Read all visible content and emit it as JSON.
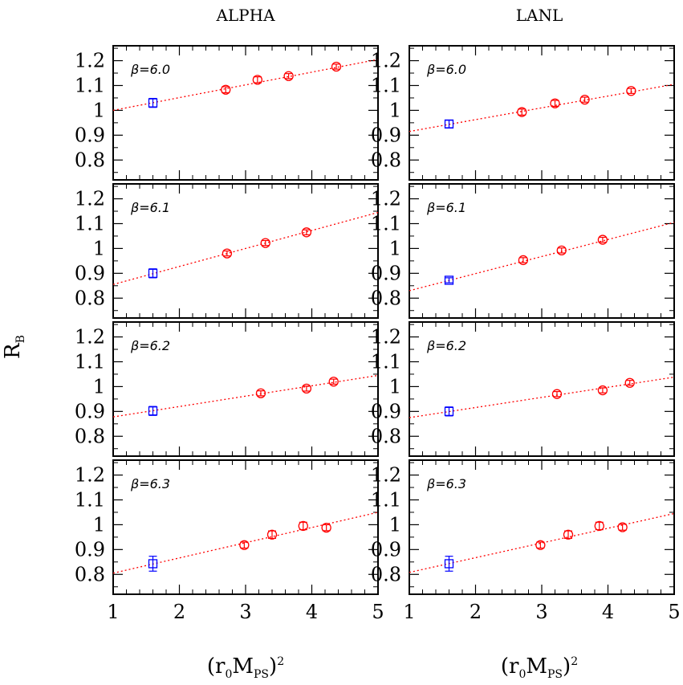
{
  "figure": {
    "ylabel": "R",
    "ylabel_sub": "B",
    "xlabel_main": "(r",
    "xlabel_sub1": "0",
    "xlabel_mid": "M",
    "xlabel_sub2": "PS",
    "xlabel_end": ")",
    "xlabel_sup": "2",
    "x_ticks": [
      "1",
      "2",
      "3",
      "4",
      "5"
    ],
    "y_ticks": [
      "1.2",
      "1.1",
      "1",
      "0.9",
      "0.8"
    ],
    "colors": {
      "fit": "#ff0000",
      "simulation": "#ff0000",
      "extrapolated": "#0000ff"
    }
  },
  "chart_data": [
    {
      "type": "scatter",
      "column": "ALPHA",
      "panel": "β=6.0",
      "xlim": [
        1,
        5
      ],
      "ylim": [
        0.72,
        1.26
      ],
      "fit": {
        "x": [
          1,
          5
        ],
        "y": [
          1.0,
          1.205
        ]
      },
      "series": [
        {
          "name": "",
          "marker": "circle",
          "color": "#ff0000",
          "x": [
            2.7,
            3.18,
            3.65,
            4.37
          ],
          "y": [
            1.083,
            1.123,
            1.138,
            1.176
          ],
          "err": [
            0.012,
            0.012,
            0.01,
            0.01
          ]
        },
        {
          "name": "",
          "marker": "square",
          "color": "#0000ff",
          "x": [
            1.6
          ],
          "y": [
            1.03
          ],
          "err": [
            0.018
          ]
        }
      ]
    },
    {
      "type": "scatter",
      "column": "LANL",
      "panel": "β=6.0",
      "xlim": [
        1,
        5
      ],
      "ylim": [
        0.72,
        1.26
      ],
      "fit": {
        "x": [
          1,
          5
        ],
        "y": [
          0.915,
          1.105
        ]
      },
      "series": [
        {
          "name": "",
          "marker": "circle",
          "color": "#ff0000",
          "x": [
            2.7,
            3.2,
            3.65,
            4.35
          ],
          "y": [
            0.993,
            1.028,
            1.043,
            1.078
          ],
          "err": [
            0.012,
            0.012,
            0.01,
            0.01
          ]
        },
        {
          "name": "",
          "marker": "square",
          "color": "#0000ff",
          "x": [
            1.6
          ],
          "y": [
            0.945
          ],
          "err": [
            0.015
          ]
        }
      ]
    },
    {
      "type": "scatter",
      "column": "ALPHA",
      "panel": "β=6.1",
      "xlim": [
        1,
        5
      ],
      "ylim": [
        0.72,
        1.26
      ],
      "fit": {
        "x": [
          1,
          5
        ],
        "y": [
          0.855,
          1.145
        ]
      },
      "series": [
        {
          "name": "",
          "marker": "circle",
          "color": "#ff0000",
          "x": [
            2.72,
            3.3,
            3.92
          ],
          "y": [
            0.98,
            1.022,
            1.065
          ],
          "err": [
            0.01,
            0.01,
            0.01
          ]
        },
        {
          "name": "",
          "marker": "square",
          "color": "#0000ff",
          "x": [
            1.6
          ],
          "y": [
            0.9
          ],
          "err": [
            0.018
          ]
        }
      ]
    },
    {
      "type": "scatter",
      "column": "LANL",
      "panel": "β=6.1",
      "xlim": [
        1,
        5
      ],
      "ylim": [
        0.72,
        1.26
      ],
      "fit": {
        "x": [
          1,
          5
        ],
        "y": [
          0.83,
          1.105
        ]
      },
      "series": [
        {
          "name": "",
          "marker": "circle",
          "color": "#ff0000",
          "x": [
            2.72,
            3.3,
            3.92
          ],
          "y": [
            0.953,
            0.992,
            1.035
          ],
          "err": [
            0.01,
            0.01,
            0.01
          ]
        },
        {
          "name": "",
          "marker": "square",
          "color": "#0000ff",
          "x": [
            1.6
          ],
          "y": [
            0.872
          ],
          "err": [
            0.01
          ]
        }
      ]
    },
    {
      "type": "scatter",
      "column": "ALPHA",
      "panel": "β=6.2",
      "xlim": [
        1,
        5
      ],
      "ylim": [
        0.72,
        1.26
      ],
      "fit": {
        "x": [
          1,
          5
        ],
        "y": [
          0.878,
          1.045
        ]
      },
      "series": [
        {
          "name": "",
          "marker": "circle",
          "color": "#ff0000",
          "x": [
            3.23,
            3.92,
            4.33
          ],
          "y": [
            0.973,
            0.992,
            1.02
          ],
          "err": [
            0.01,
            0.01,
            0.01
          ]
        },
        {
          "name": "",
          "marker": "square",
          "color": "#0000ff",
          "x": [
            1.6
          ],
          "y": [
            0.902
          ],
          "err": [
            0.018
          ]
        }
      ]
    },
    {
      "type": "scatter",
      "column": "LANL",
      "panel": "β=6.2",
      "xlim": [
        1,
        5
      ],
      "ylim": [
        0.72,
        1.26
      ],
      "fit": {
        "x": [
          1,
          5
        ],
        "y": [
          0.875,
          1.038
        ]
      },
      "series": [
        {
          "name": "",
          "marker": "circle",
          "color": "#ff0000",
          "x": [
            3.23,
            3.92,
            4.33
          ],
          "y": [
            0.97,
            0.985,
            1.015
          ],
          "err": [
            0.01,
            0.01,
            0.01
          ]
        },
        {
          "name": "",
          "marker": "square",
          "color": "#0000ff",
          "x": [
            1.6
          ],
          "y": [
            0.9
          ],
          "err": [
            0.018
          ]
        }
      ]
    },
    {
      "type": "scatter",
      "column": "ALPHA",
      "panel": "β=6.3",
      "xlim": [
        1,
        5
      ],
      "ylim": [
        0.72,
        1.26
      ],
      "fit": {
        "x": [
          1,
          5
        ],
        "y": [
          0.805,
          1.05
        ]
      },
      "series": [
        {
          "name": "",
          "marker": "circle",
          "color": "#ff0000",
          "x": [
            2.98,
            3.4,
            3.87,
            4.22
          ],
          "y": [
            0.918,
            0.96,
            0.995,
            0.988
          ],
          "err": [
            0.012,
            0.015,
            0.015,
            0.012
          ]
        },
        {
          "name": "",
          "marker": "square",
          "color": "#0000ff",
          "x": [
            1.6
          ],
          "y": [
            0.843
          ],
          "err": [
            0.03
          ]
        }
      ]
    },
    {
      "type": "scatter",
      "column": "LANL",
      "panel": "β=6.3",
      "xlim": [
        1,
        5
      ],
      "ylim": [
        0.72,
        1.26
      ],
      "fit": {
        "x": [
          1,
          5
        ],
        "y": [
          0.808,
          1.045
        ]
      },
      "series": [
        {
          "name": "",
          "marker": "circle",
          "color": "#ff0000",
          "x": [
            2.98,
            3.4,
            3.87,
            4.22
          ],
          "y": [
            0.918,
            0.96,
            0.995,
            0.99
          ],
          "err": [
            0.012,
            0.015,
            0.015,
            0.012
          ]
        },
        {
          "name": "",
          "marker": "square",
          "color": "#0000ff",
          "x": [
            1.6
          ],
          "y": [
            0.843
          ],
          "err": [
            0.03
          ]
        }
      ]
    }
  ]
}
